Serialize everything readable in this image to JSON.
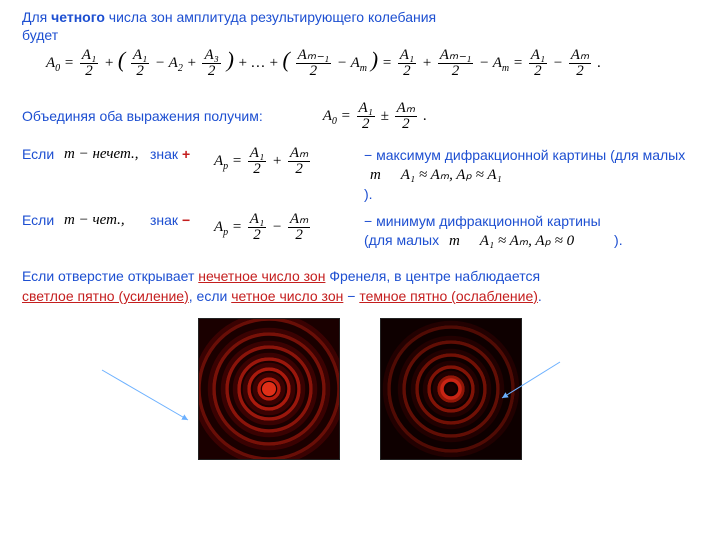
{
  "header": {
    "line1_pre": "Для ",
    "line1_bold": "четного",
    "line1_post": " числа зон амплитуда результирующего колебания",
    "line2": "будет"
  },
  "eq1": {
    "a0": "A",
    "a0_sub": "0",
    "frac1_num": "A₁",
    "frac1_den": "2",
    "lp": "(",
    "rp": ")",
    "t_a1": "A",
    "t_a1_sub": "1",
    "frac2_num": "A₁",
    "frac2_den": "2",
    "minus": "−",
    "plus": "+",
    "eq": "=",
    "t_a2": "A",
    "t_a2_sub": "2",
    "frac3_num": "A₃",
    "frac3_den": "2",
    "dots": "+ … +",
    "t_am1": "A",
    "t_am1_sub": "m−1",
    "frac4_num": "Aₘ₋₁",
    "frac4_den": "2",
    "t_am": "A",
    "t_am_sub": "m",
    "frac5_num": "A₁",
    "frac5_den": "2",
    "frac6_num": "Aₘ₋₁",
    "frac6_den": "2",
    "frac7_num": "A₁",
    "frac7_den": "2",
    "frac8_num": "Aₘ",
    "frac8_den": "2",
    "period": "."
  },
  "combine": "Объединяя оба выражения получим:",
  "eq2": {
    "a0": "A",
    "a0_sub": "0",
    "eq": "=",
    "frac1_num": "A₁",
    "frac1_den": "2",
    "pm": "±",
    "frac2_num": "Aₘ",
    "frac2_den": "2",
    "period": "."
  },
  "caseA": {
    "if": "Если",
    "cond": "m − нечет.,",
    "sign_label": "знак ",
    "plus": "+",
    "ap": "A",
    "ap_sub": "p",
    "eq": "=",
    "f1_num": "A₁",
    "f1_den": "2",
    "op": "+",
    "f2_num": "Aₘ",
    "f2_den": "2",
    "text1": "− максимум дифракционной картины (для малых",
    "small_m": "m",
    "approx1": "A₁ ≈ Aₘ,   Aₚ ≈ A₁",
    "close": ")."
  },
  "caseB": {
    "if": "Если",
    "cond": "m − чет.,",
    "sign_label": "знак ",
    "minus": "−",
    "ap": "A",
    "ap_sub": "p",
    "eq": "=",
    "f1_num": "A₁",
    "f1_den": "2",
    "op": "−",
    "f2_num": "Aₘ",
    "f2_den": "2",
    "text1": "− минимум дифракционной картины",
    "text2": "(для малых",
    "small_m": "m",
    "approx": "A₁ ≈ Aₘ,   Aₚ ≈ 0",
    "close": ")."
  },
  "conclusion": {
    "pre": "Если отверстие открывает ",
    "u1": "нечетное число зон",
    "mid1": " Френеля, в центре наблюдается ",
    "u2": "светлое пятно (усиление)",
    "mid2": ", если ",
    "u3": "четное число зон",
    "mid3": " − ",
    "u4": "темное пятно (ослабление)",
    "period": "."
  },
  "diffraction": {
    "light": {
      "bg": "#1a0000",
      "ring_dark": "#3a0202",
      "ring_bright": "#cc2010",
      "center": "#e03018",
      "rings": [
        10,
        20,
        30,
        42,
        55,
        70
      ]
    },
    "dark": {
      "bg": "#0e0000",
      "ring_dark": "#220101",
      "ring_bright": "#a01808",
      "center": "#1a0000",
      "center_ring": "#c82414",
      "rings": [
        12,
        22,
        34,
        47,
        62
      ]
    }
  },
  "arrows": {
    "color": "#6bb0ff"
  }
}
